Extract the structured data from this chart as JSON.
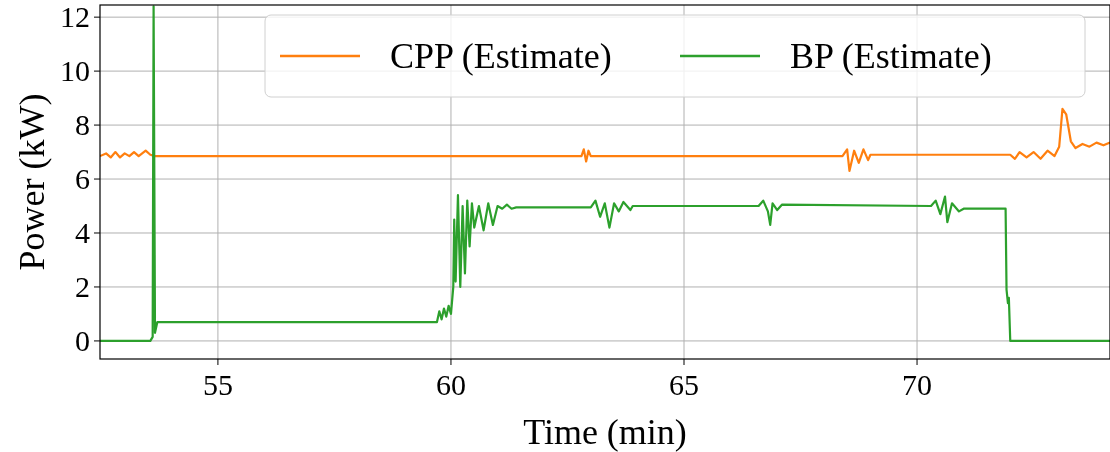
{
  "chart_data": {
    "type": "line",
    "xlabel": "Time (min)",
    "ylabel": "Power (kW)",
    "xlim": [
      52.47,
      74.14
    ],
    "ylim": [
      -0.67,
      12.45
    ],
    "xticks": [
      55,
      60,
      65,
      70
    ],
    "yticks": [
      0,
      2,
      4,
      6,
      8,
      10,
      12
    ],
    "grid": true,
    "legend": "top right",
    "line_style": "solid",
    "series": [
      {
        "name": "CPP (Estimate)",
        "color": "#ff7f0e",
        "x": [
          52.47,
          52.6,
          52.7,
          52.8,
          52.9,
          53.0,
          53.1,
          53.2,
          53.3,
          53.45,
          53.55,
          53.65,
          62.8,
          62.85,
          62.9,
          62.95,
          63.0,
          68.4,
          68.5,
          68.55,
          68.65,
          68.75,
          68.85,
          68.95,
          69.0,
          72.0,
          72.1,
          72.2,
          72.35,
          72.5,
          72.65,
          72.8,
          72.95,
          73.05,
          73.12,
          73.2,
          73.3,
          73.4,
          73.55,
          73.7,
          73.85,
          74.0,
          74.14
        ],
        "values": [
          6.85,
          6.95,
          6.8,
          7.0,
          6.8,
          6.95,
          6.85,
          7.0,
          6.85,
          7.05,
          6.9,
          6.85,
          6.85,
          7.1,
          6.65,
          7.05,
          6.85,
          6.85,
          7.1,
          6.3,
          7.05,
          6.6,
          7.1,
          6.7,
          6.9,
          6.9,
          6.75,
          7.0,
          6.8,
          7.0,
          6.75,
          7.05,
          6.85,
          7.2,
          8.6,
          8.4,
          7.4,
          7.15,
          7.3,
          7.2,
          7.35,
          7.25,
          7.35
        ]
      },
      {
        "name": "BP (Estimate)",
        "color": "#2ca02c",
        "x": [
          52.47,
          53.55,
          53.6,
          53.62,
          53.65,
          53.7,
          59.7,
          59.75,
          59.8,
          59.85,
          59.9,
          59.95,
          60.0,
          60.05,
          60.07,
          60.1,
          60.15,
          60.2,
          60.25,
          60.3,
          60.35,
          60.4,
          60.45,
          60.5,
          60.6,
          60.7,
          60.8,
          60.9,
          61.0,
          61.1,
          61.2,
          61.3,
          61.4,
          63.0,
          63.1,
          63.2,
          63.3,
          63.4,
          63.5,
          63.6,
          63.7,
          63.85,
          63.9,
          66.6,
          66.7,
          66.8,
          66.85,
          66.9,
          67.0,
          67.1,
          70.3,
          70.4,
          70.5,
          70.6,
          70.65,
          70.75,
          70.9,
          71.0,
          71.9,
          71.92,
          71.95,
          71.97,
          72.0,
          74.14
        ],
        "values": [
          0,
          0,
          0.15,
          12.4,
          0.3,
          0.7,
          0.7,
          1.1,
          0.8,
          1.2,
          0.9,
          1.3,
          1.0,
          2.0,
          4.5,
          2.2,
          5.4,
          2.0,
          5.0,
          2.5,
          5.2,
          3.5,
          5.1,
          4.2,
          5.0,
          4.1,
          5.1,
          4.3,
          5.0,
          4.9,
          5.05,
          4.9,
          4.95,
          4.95,
          5.2,
          4.6,
          5.1,
          4.2,
          5.1,
          4.8,
          5.15,
          4.85,
          5.0,
          5.0,
          5.2,
          4.8,
          4.3,
          5.1,
          4.85,
          5.05,
          5.0,
          5.2,
          4.7,
          5.35,
          4.4,
          5.1,
          4.8,
          4.9,
          4.9,
          1.9,
          1.4,
          1.6,
          0,
          0
        ]
      }
    ]
  }
}
